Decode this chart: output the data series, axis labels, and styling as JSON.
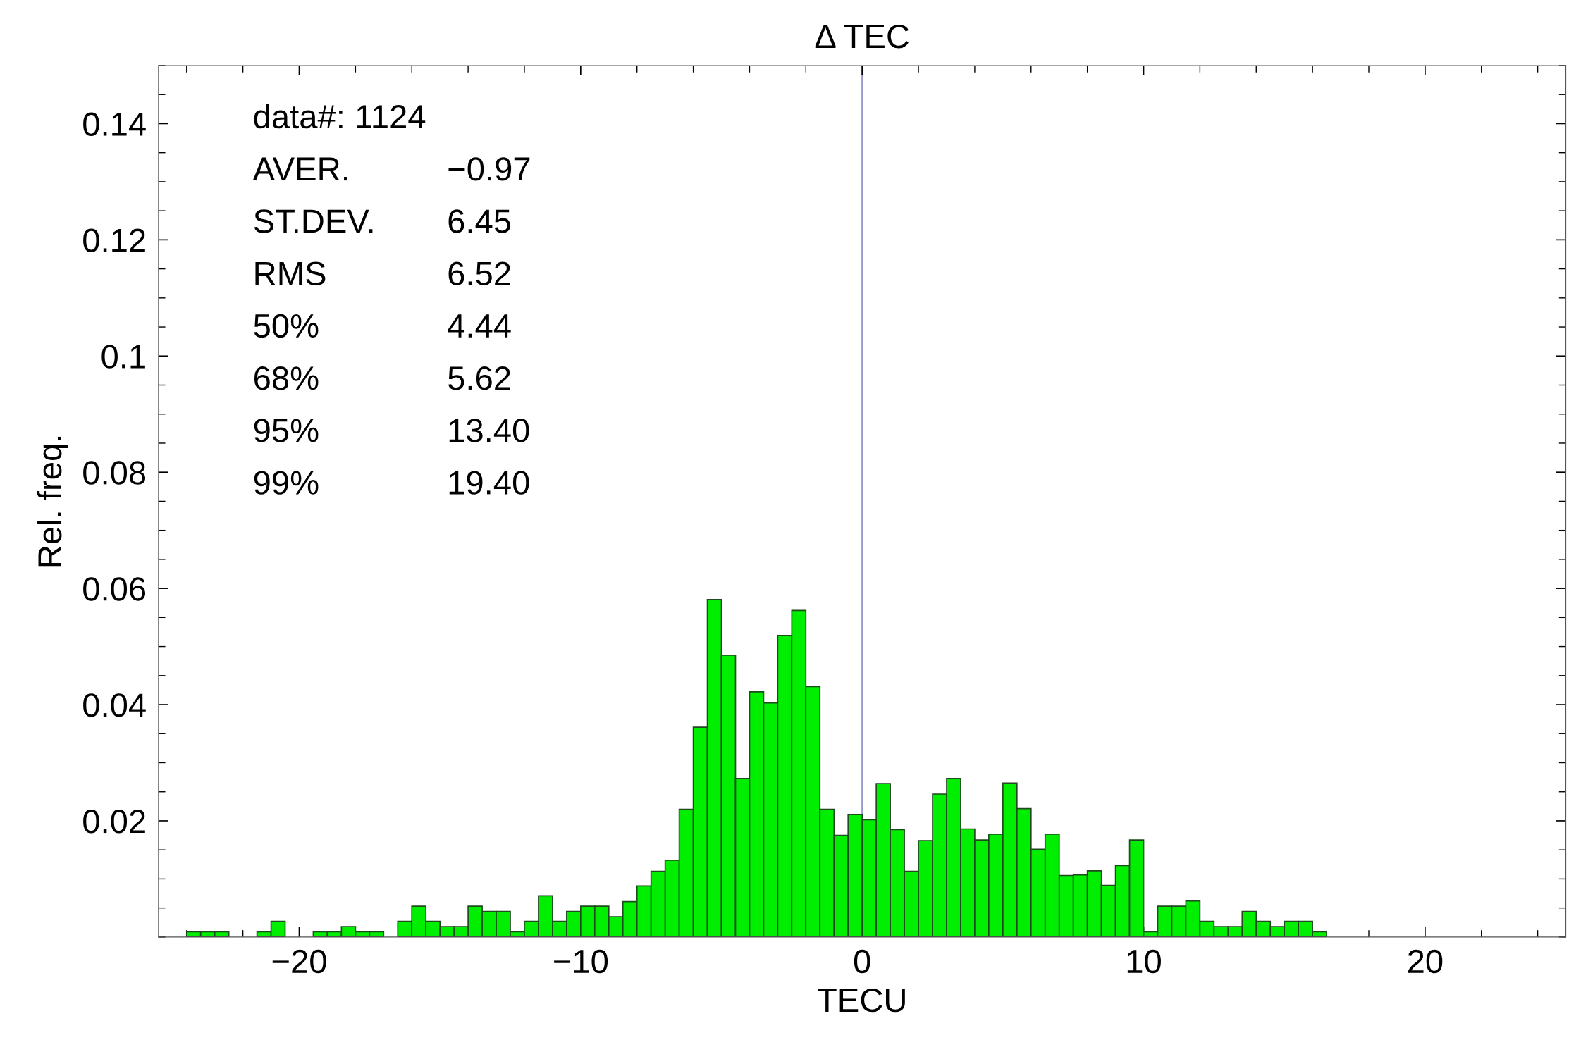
{
  "chart_data": {
    "type": "histogram",
    "title": "Δ TEC",
    "xlabel": "TECU",
    "ylabel": "Rel. freq.",
    "bins": [
      -24,
      -23.5,
      -23,
      -22.5,
      -22,
      -21.5,
      -21,
      -20.5,
      -20,
      -19.5,
      -19,
      -18.5,
      -18,
      -17.5,
      -17,
      -16.5,
      -16,
      -15.5,
      -15,
      -14.5,
      -14,
      -13.5,
      -13,
      -12.5,
      -12,
      -11.5,
      -11,
      -10.5,
      -10,
      -9.5,
      -9,
      -8.5,
      -8,
      -7.5,
      -7,
      -6.5,
      -6,
      -5.5,
      -5,
      -4.5,
      -4,
      -3.5,
      -3,
      -2.5,
      -2,
      -1.5,
      -1,
      -0.5,
      0,
      0.5,
      1,
      1.5,
      2,
      2.5,
      3,
      3.5,
      4,
      4.5,
      5,
      5.5,
      6,
      6.5,
      7,
      7.5,
      8,
      8.5,
      9,
      9.5,
      10,
      10.5,
      11,
      11.5,
      12,
      12.5,
      13,
      13.5,
      14,
      14.5,
      15,
      15.5,
      16,
      16.5
    ],
    "values": [
      0.0009,
      0.0009,
      0.0009,
      0,
      0,
      0.0009,
      0.0027,
      0,
      0,
      0.0009,
      0.0009,
      0.0018,
      0.0009,
      0.0009,
      0,
      0.0027,
      0.0053,
      0.0027,
      0.0018,
      0.0018,
      0.0053,
      0.0044,
      0.0044,
      0.0009,
      0.0027,
      0.0071,
      0.0027,
      0.0044,
      0.0053,
      0.0053,
      0.0035,
      0.0061,
      0.0088,
      0.0113,
      0.0132,
      0.022,
      0.0361,
      0.0581,
      0.0485,
      0.0273,
      0.0422,
      0.0403,
      0.0519,
      0.0562,
      0.0431,
      0.022,
      0.0175,
      0.0211,
      0.0202,
      0.0264,
      0.0185,
      0.0113,
      0.0166,
      0.0246,
      0.0273,
      0.0186,
      0.0167,
      0.0177,
      0.0265,
      0.0221,
      0.0151,
      0.0177,
      0.0106,
      0.0107,
      0.0114,
      0.0089,
      0.0123,
      0.0167,
      0.0009,
      0.0053,
      0.0053,
      0.0062,
      0.0027,
      0.0018,
      0.0018,
      0.0044,
      0.0027,
      0.0018,
      0.0027,
      0.0027,
      0.0009
    ],
    "color": "#00ee00",
    "xlim": [
      -25,
      25
    ],
    "xticks": [
      {
        "value": -20,
        "label": "−20"
      },
      {
        "value": -10,
        "label": "−10"
      },
      0,
      10,
      20
    ],
    "ylim": [
      0,
      0.15
    ],
    "yticks": [
      0.02,
      0.04,
      0.06,
      0.08,
      0.1,
      0.12,
      0.14
    ],
    "ref_lines": [
      {
        "axis": "x",
        "value": 0,
        "color": "#9a9acc"
      }
    ],
    "annotations": [
      "data#: 1124",
      "AVER.",
      "−0.97",
      "ST.DEV.",
      "6.45",
      "RMS",
      "6.52",
      "50%",
      "4.44",
      "68%",
      "5.62",
      "95%",
      "13.40",
      "99%",
      "19.40"
    ],
    "grid": false
  }
}
